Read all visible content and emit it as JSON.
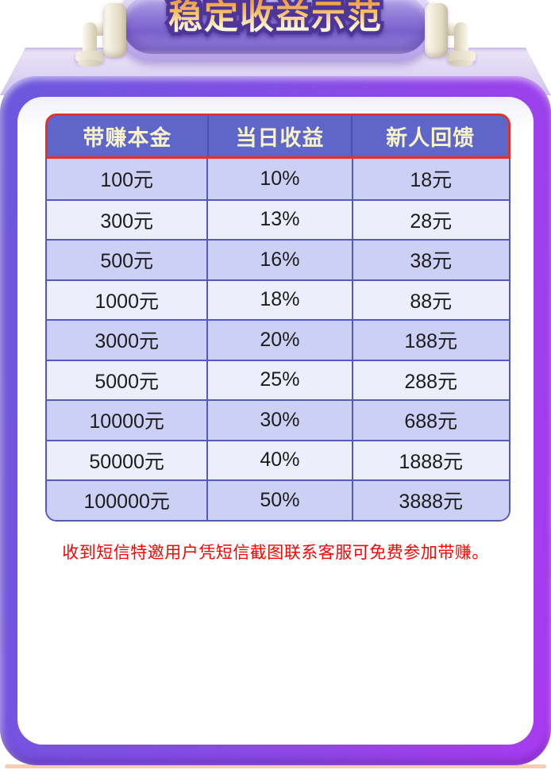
{
  "banner": {
    "title": "稳定收益示范"
  },
  "table": {
    "headers": [
      "带赚本金",
      "当日收益",
      "新人回馈"
    ],
    "rows": [
      [
        "100元",
        "10%",
        "18元"
      ],
      [
        "300元",
        "13%",
        "28元"
      ],
      [
        "500元",
        "16%",
        "38元"
      ],
      [
        "1000元",
        "18%",
        "88元"
      ],
      [
        "3000元",
        "20%",
        "188元"
      ],
      [
        "5000元",
        "25%",
        "288元"
      ],
      [
        "10000元",
        "30%",
        "688元"
      ],
      [
        "50000元",
        "40%",
        "1888元"
      ],
      [
        "100000元",
        "50%",
        "3888元"
      ]
    ]
  },
  "note": "收到短信特邀用户凭短信截图联系客服可免费参加带赚。",
  "colors": {
    "header_bg": "#5f66c9",
    "header_text": "#f8f3cb",
    "header_border": "#e8302a",
    "row_odd_bg": "#cdd0f5",
    "row_even_bg": "#edeefb",
    "body_border": "#5459bd",
    "cell_text": "#1c1c1c",
    "note_text": "#ff0000",
    "frame_left": "#6a58dd",
    "frame_mid": "#8a4ae6",
    "frame_right": "#a93bf0"
  }
}
